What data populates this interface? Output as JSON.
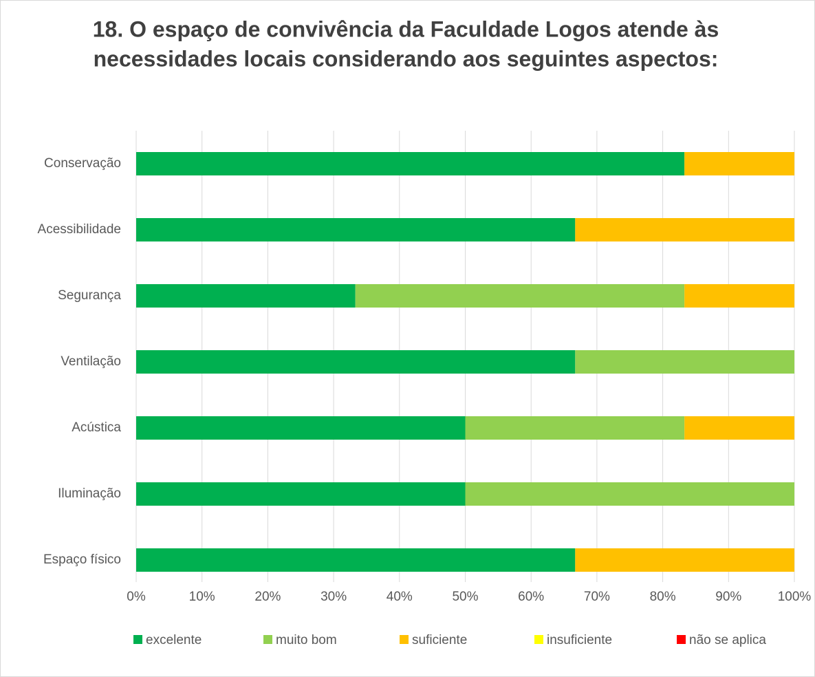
{
  "chart_data": {
    "type": "stacked_bar_horizontal",
    "title": [
      "18. O espaço de convivência da Faculdade Logos atende às",
      "necessidades locais considerando aos seguintes aspectos:"
    ],
    "categories": [
      "Conservação",
      "Acessibilidade",
      "Segurança",
      "Ventilação",
      "Acústica",
      "Iluminação",
      "Espaço físico"
    ],
    "series": [
      {
        "name": "excelente",
        "color": "#00b050",
        "values": [
          83.3,
          66.7,
          33.3,
          66.7,
          50,
          50,
          66.7
        ]
      },
      {
        "name": "muito bom",
        "color": "#92d050",
        "values": [
          0,
          0,
          50,
          33.3,
          33.3,
          50,
          0
        ]
      },
      {
        "name": "suficiente",
        "color": "#ffc000",
        "values": [
          16.7,
          33.3,
          16.7,
          0,
          16.7,
          0,
          33.3
        ]
      },
      {
        "name": "insuficiente",
        "color": "#ffff00",
        "values": [
          0,
          0,
          0,
          0,
          0,
          0,
          0
        ]
      },
      {
        "name": "não se aplica",
        "color": "#ff0000",
        "values": [
          0,
          0,
          0,
          0,
          0,
          0,
          0
        ]
      }
    ],
    "xlim": [
      0,
      100
    ],
    "xticks": [
      {
        "value": 0,
        "label": "0%"
      },
      {
        "value": 10,
        "label": "10%"
      },
      {
        "value": 20,
        "label": "20%"
      },
      {
        "value": 30,
        "label": "30%"
      },
      {
        "value": 40,
        "label": "40%"
      },
      {
        "value": 50,
        "label": "50%"
      },
      {
        "value": 60,
        "label": "60%"
      },
      {
        "value": 70,
        "label": "70%"
      },
      {
        "value": 80,
        "label": "80%"
      },
      {
        "value": 90,
        "label": "90%"
      },
      {
        "value": 100,
        "label": "100%"
      }
    ],
    "grid": true,
    "legend": "bottom"
  }
}
